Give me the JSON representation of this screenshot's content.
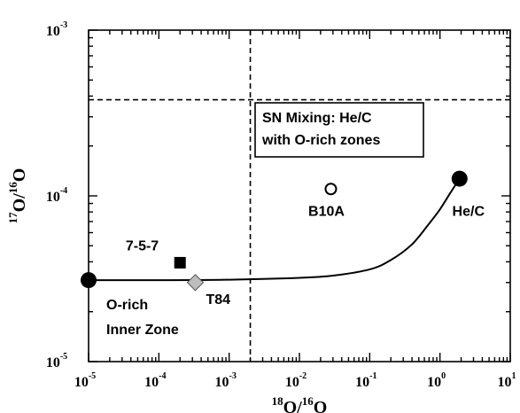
{
  "chart_data": {
    "type": "scatter",
    "xscale": "log",
    "yscale": "log",
    "xlim": [
      1e-05,
      10
    ],
    "ylim": [
      1e-05,
      0.001
    ],
    "x_ticks": [
      {
        "base": "10",
        "exp": "-5",
        "value": 1e-05
      },
      {
        "base": "10",
        "exp": "-4",
        "value": 0.0001
      },
      {
        "base": "10",
        "exp": "-3",
        "value": 0.001
      },
      {
        "base": "10",
        "exp": "-2",
        "value": 0.01
      },
      {
        "base": "10",
        "exp": "-1",
        "value": 0.1
      },
      {
        "base": "10",
        "exp": "0",
        "value": 1
      },
      {
        "base": "10",
        "exp": "1",
        "value": 10
      }
    ],
    "y_ticks": [
      {
        "base": "10",
        "exp": "-5",
        "value": 1e-05
      },
      {
        "base": "10",
        "exp": "-4",
        "value": 0.0001
      },
      {
        "base": "10",
        "exp": "-3",
        "value": 0.001
      }
    ],
    "xlabel": {
      "sup1": "18",
      "mid": "O/",
      "sup2": "16",
      "end": "O"
    },
    "ylabel": {
      "sup1": "17",
      "mid": "O/",
      "sup2": "16",
      "end": "O"
    },
    "dashed_lines": [
      {
        "orientation": "vertical",
        "x": 0.002
      },
      {
        "orientation": "horizontal",
        "y": 0.00038
      }
    ],
    "mixing_curve": {
      "x": [
        1e-05,
        0.0001,
        0.001,
        0.01,
        0.03,
        0.1,
        0.2,
        0.4,
        0.7,
        1.0,
        1.4,
        1.9
      ],
      "y": [
        3.1e-05,
        3.1e-05,
        3.12e-05,
        3.2e-05,
        3.3e-05,
        3.6e-05,
        4.1e-05,
        5.1e-05,
        6.8e-05,
        8.3e-05,
        0.000104,
        0.000127
      ]
    },
    "points": [
      {
        "label": "",
        "x": 1e-05,
        "y": 3.1e-05,
        "marker": "circle-filled",
        "size": "large"
      },
      {
        "label": "He/C",
        "x": 1.9,
        "y": 0.000127,
        "marker": "circle-filled",
        "size": "large"
      },
      {
        "label": "7-5-7",
        "x": 0.0002,
        "y": 3.95e-05,
        "marker": "square-filled"
      },
      {
        "label": "T84",
        "x": 0.00033,
        "y": 3e-05,
        "marker": "diamond-gray"
      },
      {
        "label": "B10A",
        "x": 0.028,
        "y": 0.00011,
        "marker": "circle-open"
      }
    ],
    "annotations": [
      {
        "lines": [
          "SN Mixing: He/C",
          "with O-rich zones"
        ],
        "boxed": true
      },
      {
        "lines": [
          "O-rich",
          "Inner Zone"
        ],
        "boxed": false
      }
    ],
    "colors": {
      "line": "#000000",
      "diamond_fill": "#bdbdbd",
      "box_bg": "#ffffff"
    }
  }
}
